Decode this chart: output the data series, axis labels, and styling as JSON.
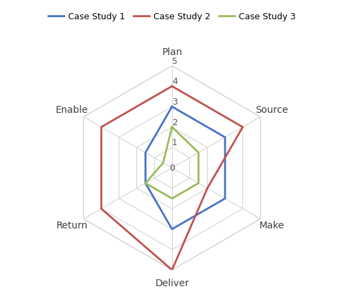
{
  "categories": [
    "Plan",
    "Source",
    "Make",
    "Deliver",
    "Return",
    "Enable"
  ],
  "case_study_1": [
    3,
    3,
    3,
    3,
    1.5,
    1.5
  ],
  "case_study_2": [
    4,
    4,
    2,
    5,
    4,
    4
  ],
  "case_study_3": [
    2,
    1.5,
    1.5,
    1.5,
    1.5,
    0.5
  ],
  "colors": {
    "case_study_1": "#4472C4",
    "case_study_2": "#C0504D",
    "case_study_3": "#9BBB59"
  },
  "labels": [
    "Case Study 1",
    "Case Study 2",
    "Case Study 3"
  ],
  "r_max": 5,
  "r_ticks": [
    1,
    2,
    3,
    4,
    5
  ],
  "r_tick_labels": [
    "1",
    "2",
    "3",
    "4",
    "5"
  ],
  "grid_color": "#D3D3D3",
  "background_color": "#FFFFFF",
  "line_width": 2.0,
  "label_fontsize": 10,
  "tick_fontsize": 9,
  "legend_fontsize": 9,
  "figsize": [
    5.0,
    4.23
  ],
  "dpi": 100
}
